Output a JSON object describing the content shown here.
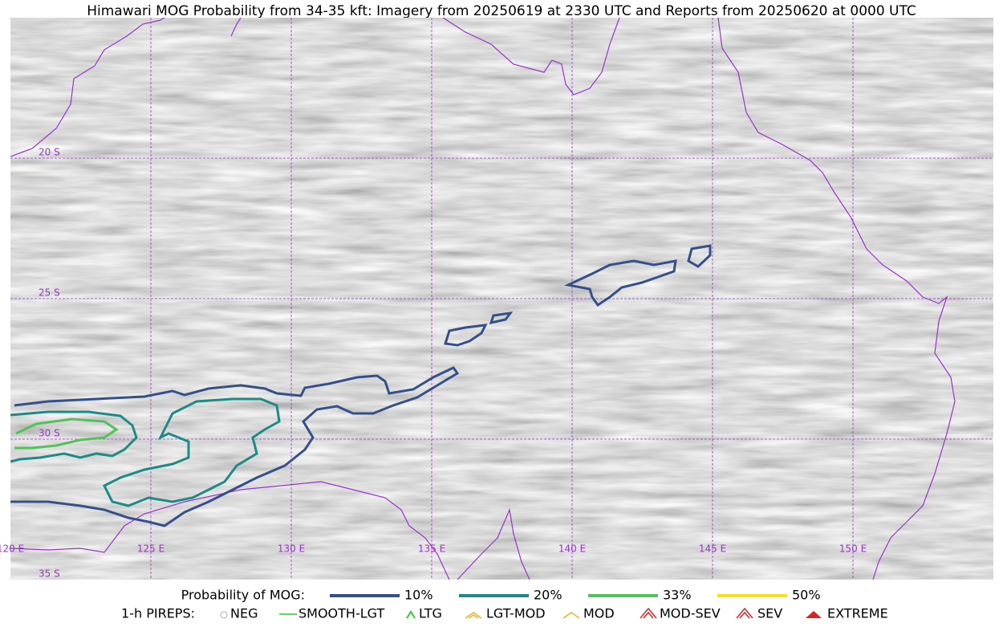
{
  "title": "Himawari MOG Probability from 34-35 kft: Imagery from 20250619 at 2330 UTC and Reports from 20250620 at 0000 UTC",
  "latitude_labels": [
    "20 S",
    "25 S",
    "30 S",
    "35 S"
  ],
  "longitude_labels": [
    "120 E",
    "125 E",
    "130 E",
    "135 E",
    "140 E",
    "145 E",
    "150 E"
  ],
  "legend": {
    "probability": {
      "label": "Probability of MOG:",
      "items": [
        {
          "label": "10%",
          "color": "#34508a"
        },
        {
          "label": "20%",
          "color": "#1d8a86"
        },
        {
          "label": "33%",
          "color": "#52c25a"
        },
        {
          "label": "50%",
          "color": "#f5e11a"
        }
      ]
    },
    "pireps": {
      "label": "1-h PIREPS:",
      "items": [
        "NEG",
        "SMOOTH-LGT",
        "LTG",
        "LGT-MOD",
        "MOD",
        "MOD-SEV",
        "SEV",
        "EXTREME"
      ]
    }
  }
}
